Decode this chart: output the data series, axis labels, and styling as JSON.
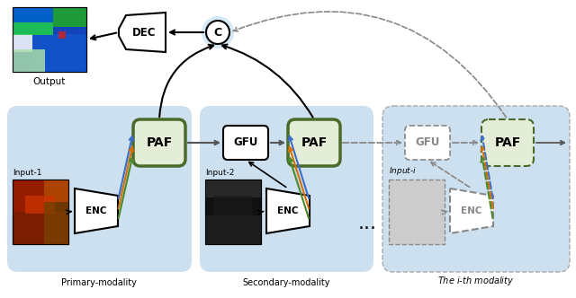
{
  "bg_color": "#ffffff",
  "panel_color": "#cde0f0",
  "paf_color": "#e4edd8",
  "concat_bg": "#d5e8f5",
  "arrow_blue": "#3a6cc8",
  "arrow_orange": "#d4700a",
  "arrow_green": "#4a8a2a",
  "arrow_gray": "#888888",
  "arrow_black": "#111111",
  "paf_border": "#4a6a2a",
  "label_primary": "Primary-modality",
  "label_secondary": "Secondary-modality",
  "label_ith": "The $i$-th modality",
  "label_output": "Output",
  "label_input1": "Input-1",
  "label_input2": "Input-2",
  "label_inputi": "Input-$i$"
}
